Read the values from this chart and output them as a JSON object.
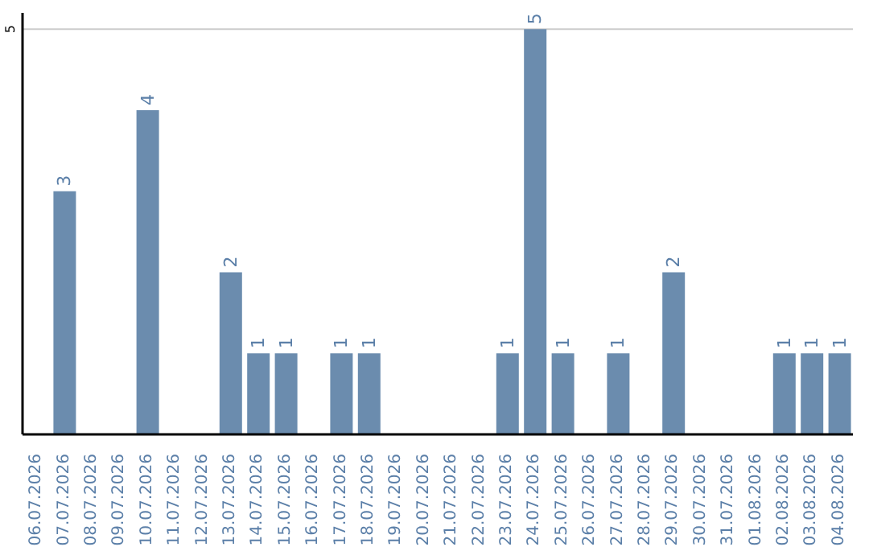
{
  "chart_data": {
    "type": "bar",
    "categories": [
      "06.07.2026",
      "07.07.2026",
      "08.07.2026",
      "09.07.2026",
      "10.07.2026",
      "11.07.2026",
      "12.07.2026",
      "13.07.2026",
      "14.07.2026",
      "15.07.2026",
      "16.07.2026",
      "17.07.2026",
      "18.07.2026",
      "19.07.2026",
      "20.07.2026",
      "21.07.2026",
      "22.07.2026",
      "23.07.2026",
      "24.07.2026",
      "25.07.2026",
      "26.07.2026",
      "27.07.2026",
      "28.07.2026",
      "29.07.2026",
      "30.07.2026",
      "31.07.2026",
      "01.08.2026",
      "02.08.2026",
      "03.08.2026",
      "04.08.2026"
    ],
    "values": [
      null,
      3,
      null,
      null,
      4,
      null,
      null,
      2,
      1,
      1,
      null,
      1,
      1,
      null,
      null,
      null,
      null,
      1,
      5,
      1,
      null,
      1,
      null,
      2,
      null,
      null,
      null,
      1,
      1,
      1
    ],
    "color": "#6b8cae",
    "ylim": [
      0,
      5.2
    ],
    "yticks": [
      5
    ],
    "grid": "y",
    "data_labels": true
  }
}
